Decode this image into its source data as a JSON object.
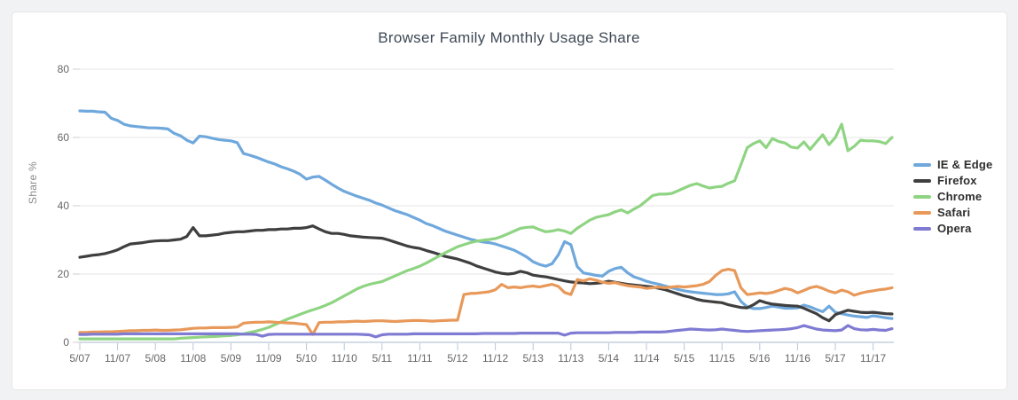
{
  "page": {
    "background_color": "#f1f2f3",
    "card_background_color": "#ffffff"
  },
  "chart_data": {
    "type": "line",
    "title": "Browser Family Monthly Usage Share",
    "ylabel": "Share %",
    "xlabel": "",
    "ylim": [
      0,
      80
    ],
    "yticks": [
      0,
      20,
      40,
      60,
      80
    ],
    "grid": "horizontal",
    "legend_position": "right",
    "x_interval": "monthly",
    "x_start": "5/07",
    "x_end": "2/18",
    "xtick_every_n_months": 6,
    "xtick_labels": [
      "5/07",
      "11/07",
      "5/08",
      "11/08",
      "5/09",
      "11/09",
      "5/10",
      "11/10",
      "5/11",
      "11/11",
      "5/12",
      "11/12",
      "5/13",
      "11/13",
      "5/14",
      "11/14",
      "5/15",
      "11/15",
      "5/16",
      "11/16",
      "5/17",
      "11/17"
    ],
    "axis_line_color": "#b9c7d6",
    "gridline_color": "#e4e4e4",
    "tick_label_color": "#666666",
    "series": [
      {
        "name": "IE & Edge",
        "color": "#6FA8DC",
        "values": [
          67.8,
          67.7,
          67.7,
          67.5,
          67.4,
          65.6,
          65.0,
          63.9,
          63.4,
          63.2,
          63.0,
          62.8,
          62.8,
          62.7,
          62.5,
          61.2,
          60.5,
          59.2,
          58.4,
          60.4,
          60.2,
          59.8,
          59.4,
          59.2,
          59.0,
          58.5,
          55.3,
          54.8,
          54.2,
          53.5,
          52.8,
          52.2,
          51.4,
          50.8,
          50.1,
          49.2,
          47.8,
          48.4,
          48.6,
          47.5,
          46.3,
          45.2,
          44.2,
          43.5,
          42.8,
          42.2,
          41.6,
          40.8,
          40.2,
          39.4,
          38.6,
          38.0,
          37.4,
          36.6,
          35.8,
          34.8,
          34.2,
          33.4,
          32.6,
          32.0,
          31.4,
          30.8,
          30.2,
          29.8,
          29.4,
          29.2,
          28.8,
          28.2,
          27.6,
          27.0,
          26.0,
          25.0,
          23.6,
          22.8,
          22.3,
          23.0,
          25.6,
          29.5,
          28.6,
          22.2,
          20.3,
          20.0,
          19.6,
          19.4,
          20.8,
          21.6,
          22.0,
          20.4,
          19.2,
          18.6,
          17.9,
          17.4,
          17.0,
          16.5,
          16.0,
          15.5,
          15.1,
          14.8,
          14.6,
          14.4,
          14.2,
          14.0,
          14.0,
          14.2,
          14.8,
          12.0,
          10.4,
          9.9,
          9.9,
          10.2,
          10.6,
          10.3,
          10.0,
          10.0,
          10.1,
          10.9,
          10.4,
          9.6,
          9.0,
          10.6,
          8.8,
          8.4,
          8.0,
          7.7,
          7.5,
          7.3,
          7.8,
          7.5,
          7.2,
          7.0
        ]
      },
      {
        "name": "Firefox",
        "color": "#3F3F3F",
        "values": [
          24.9,
          25.2,
          25.5,
          25.7,
          26.0,
          26.5,
          27.1,
          28.0,
          28.8,
          29.0,
          29.2,
          29.5,
          29.7,
          29.8,
          29.8,
          30.0,
          30.2,
          31.0,
          33.6,
          31.2,
          31.2,
          31.4,
          31.6,
          32.0,
          32.2,
          32.4,
          32.4,
          32.6,
          32.8,
          32.8,
          33.0,
          33.0,
          33.2,
          33.2,
          33.4,
          33.4,
          33.6,
          34.1,
          33.2,
          32.4,
          31.9,
          31.9,
          31.6,
          31.2,
          31.0,
          30.8,
          30.7,
          30.6,
          30.5,
          30.0,
          29.4,
          28.8,
          28.2,
          27.8,
          27.5,
          26.9,
          26.4,
          25.8,
          25.2,
          24.8,
          24.4,
          23.8,
          23.2,
          22.4,
          21.8,
          21.2,
          20.6,
          20.2,
          20.0,
          20.2,
          20.8,
          20.4,
          19.7,
          19.4,
          19.2,
          18.8,
          18.4,
          18.0,
          17.7,
          17.5,
          17.4,
          17.2,
          17.3,
          17.5,
          17.9,
          17.6,
          17.3,
          17.0,
          16.8,
          16.6,
          16.4,
          16.2,
          15.8,
          15.4,
          14.8,
          14.2,
          13.6,
          13.2,
          12.6,
          12.2,
          12.0,
          11.8,
          11.6,
          11.0,
          10.6,
          10.2,
          10.1,
          11.0,
          12.2,
          11.6,
          11.2,
          11.0,
          10.8,
          10.7,
          10.6,
          10.0,
          9.2,
          8.4,
          7.2,
          6.3,
          8.1,
          8.8,
          9.4,
          9.1,
          8.8,
          8.7,
          8.8,
          8.6,
          8.4,
          8.3
        ]
      },
      {
        "name": "Chrome",
        "color": "#8FD483",
        "values": [
          1.0,
          1.0,
          1.0,
          1.0,
          1.0,
          1.0,
          1.0,
          1.0,
          1.0,
          1.0,
          1.0,
          1.0,
          1.0,
          1.0,
          1.0,
          1.0,
          1.2,
          1.3,
          1.4,
          1.5,
          1.6,
          1.7,
          1.8,
          1.9,
          2.0,
          2.2,
          2.5,
          2.9,
          3.3,
          3.8,
          4.4,
          5.2,
          6.0,
          6.8,
          7.5,
          8.2,
          8.9,
          9.5,
          10.1,
          10.8,
          11.6,
          12.6,
          13.6,
          14.6,
          15.6,
          16.4,
          17.0,
          17.4,
          17.8,
          18.6,
          19.4,
          20.2,
          21.0,
          21.6,
          22.3,
          23.2,
          24.2,
          25.2,
          26.2,
          27.1,
          28.0,
          28.6,
          29.2,
          29.6,
          29.9,
          30.1,
          30.4,
          31.0,
          31.8,
          32.6,
          33.4,
          33.7,
          33.8,
          33.0,
          32.4,
          32.6,
          33.0,
          32.6,
          31.9,
          33.4,
          34.6,
          35.8,
          36.6,
          37.0,
          37.4,
          38.2,
          38.8,
          37.9,
          39.0,
          40.0,
          41.5,
          43.0,
          43.4,
          43.4,
          43.6,
          44.4,
          45.2,
          46.0,
          46.5,
          45.8,
          45.2,
          45.5,
          45.7,
          46.6,
          47.3,
          52.0,
          57.0,
          58.2,
          59.0,
          57.0,
          59.7,
          58.8,
          58.4,
          57.2,
          56.9,
          58.7,
          56.5,
          58.7,
          60.8,
          57.9,
          60.0,
          63.9,
          56.1,
          57.4,
          59.2,
          59.0,
          59.0,
          58.8,
          58.2,
          60.0
        ]
      },
      {
        "name": "Safari",
        "color": "#E8995A",
        "values": [
          2.9,
          2.9,
          3.0,
          3.0,
          3.1,
          3.1,
          3.2,
          3.3,
          3.4,
          3.4,
          3.5,
          3.5,
          3.6,
          3.5,
          3.5,
          3.6,
          3.7,
          3.9,
          4.1,
          4.2,
          4.2,
          4.3,
          4.3,
          4.3,
          4.4,
          4.5,
          5.6,
          5.8,
          5.9,
          5.9,
          6.0,
          5.9,
          5.8,
          5.7,
          5.6,
          5.4,
          5.2,
          2.3,
          5.8,
          5.9,
          5.9,
          6.0,
          6.0,
          6.1,
          6.2,
          6.1,
          6.2,
          6.3,
          6.3,
          6.2,
          6.1,
          6.2,
          6.3,
          6.4,
          6.4,
          6.3,
          6.2,
          6.3,
          6.4,
          6.5,
          6.5,
          14.0,
          14.3,
          14.4,
          14.6,
          14.8,
          15.4,
          17.0,
          16.0,
          16.2,
          16.0,
          16.3,
          16.5,
          16.2,
          16.6,
          17.0,
          16.4,
          14.6,
          14.0,
          18.4,
          18.0,
          18.6,
          18.2,
          17.6,
          17.3,
          17.5,
          17.0,
          16.6,
          16.4,
          16.2,
          15.8,
          16.0,
          16.2,
          16.0,
          16.2,
          16.4,
          16.2,
          16.4,
          16.6,
          17.0,
          17.8,
          19.6,
          21.0,
          21.4,
          21.0,
          16.0,
          14.0,
          14.2,
          14.5,
          14.3,
          14.6,
          15.2,
          15.8,
          15.4,
          14.5,
          15.2,
          16.0,
          16.4,
          15.8,
          15.0,
          14.5,
          15.3,
          14.8,
          13.8,
          14.4,
          14.8,
          15.1,
          15.4,
          15.6,
          16.0
        ]
      },
      {
        "name": "Opera",
        "color": "#7F7BD3",
        "values": [
          2.3,
          2.3,
          2.4,
          2.4,
          2.4,
          2.4,
          2.4,
          2.5,
          2.5,
          2.5,
          2.5,
          2.5,
          2.5,
          2.5,
          2.5,
          2.5,
          2.5,
          2.5,
          2.5,
          2.5,
          2.5,
          2.5,
          2.5,
          2.5,
          2.5,
          2.5,
          2.4,
          2.4,
          2.3,
          1.8,
          2.3,
          2.4,
          2.4,
          2.4,
          2.4,
          2.4,
          2.4,
          2.4,
          2.4,
          2.4,
          2.4,
          2.4,
          2.4,
          2.4,
          2.4,
          2.3,
          2.2,
          1.6,
          2.2,
          2.4,
          2.4,
          2.4,
          2.4,
          2.5,
          2.5,
          2.5,
          2.5,
          2.5,
          2.5,
          2.5,
          2.5,
          2.5,
          2.5,
          2.5,
          2.6,
          2.6,
          2.6,
          2.6,
          2.6,
          2.6,
          2.7,
          2.7,
          2.7,
          2.7,
          2.7,
          2.7,
          2.7,
          2.1,
          2.7,
          2.8,
          2.8,
          2.8,
          2.8,
          2.8,
          2.8,
          2.9,
          2.9,
          2.9,
          2.9,
          3.0,
          3.0,
          3.0,
          3.0,
          3.1,
          3.3,
          3.5,
          3.7,
          3.9,
          3.8,
          3.7,
          3.6,
          3.7,
          3.9,
          3.7,
          3.5,
          3.3,
          3.2,
          3.3,
          3.4,
          3.5,
          3.6,
          3.7,
          3.8,
          4.0,
          4.3,
          4.9,
          4.4,
          3.9,
          3.6,
          3.5,
          3.4,
          3.6,
          4.9,
          4.0,
          3.7,
          3.6,
          3.8,
          3.6,
          3.5,
          4.0
        ]
      }
    ]
  }
}
